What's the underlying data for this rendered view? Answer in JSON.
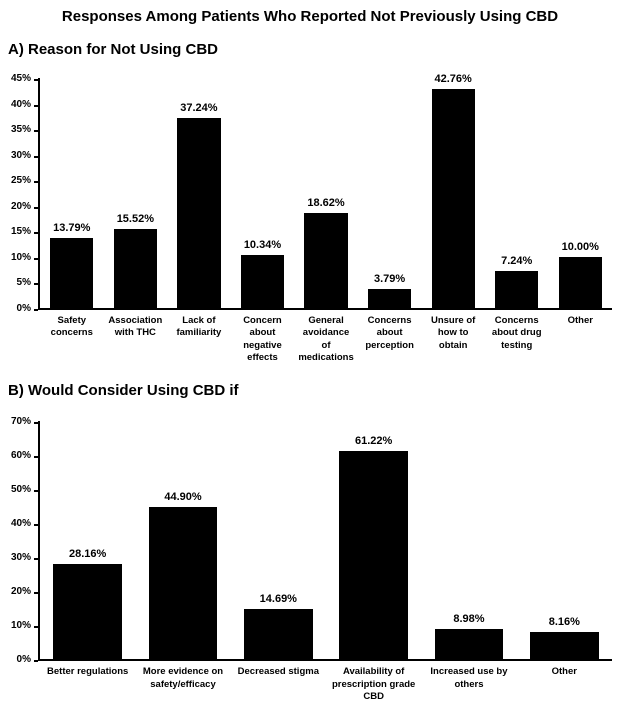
{
  "title": "Responses Among Patients Who Reported Not Previously Using CBD",
  "chart_data": [
    {
      "type": "bar",
      "panel": "A",
      "title": "A) Reason for Not Using CBD",
      "categories": [
        "Safety concerns",
        "Association with THC",
        "Lack of familiarity",
        "Concern about negative effects",
        "General avoidance of medications",
        "Concerns about perception",
        "Unsure of how to obtain",
        "Concerns about drug testing",
        "Other"
      ],
      "values": [
        13.79,
        15.52,
        37.24,
        10.34,
        18.62,
        3.79,
        42.76,
        7.24,
        10.0
      ],
      "value_labels": [
        "13.79%",
        "15.52%",
        "37.24%",
        "10.34%",
        "18.62%",
        "3.79%",
        "42.76%",
        "7.24%",
        "10.00%"
      ],
      "xlabel": "",
      "ylabel": "",
      "ylim": [
        0,
        45
      ],
      "ytick_step": 5,
      "ytick_suffix": "%",
      "bar_color": "#000000",
      "grid": false,
      "legend": "none"
    },
    {
      "type": "bar",
      "panel": "B",
      "title": "B) Would Consider Using CBD if",
      "categories": [
        "Better regulations",
        "More evidence on safety/efficacy",
        "Decreased stigma",
        "Availability of prescription grade CBD",
        "Increased use by others",
        "Other"
      ],
      "values": [
        28.16,
        44.9,
        14.69,
        61.22,
        8.98,
        8.16
      ],
      "value_labels": [
        "28.16%",
        "44.90%",
        "14.69%",
        "61.22%",
        "8.98%",
        "8.16%"
      ],
      "xlabel": "",
      "ylabel": "",
      "ylim": [
        0,
        70
      ],
      "ytick_step": 10,
      "ytick_suffix": "%",
      "bar_color": "#000000",
      "grid": false,
      "legend": "none"
    }
  ]
}
